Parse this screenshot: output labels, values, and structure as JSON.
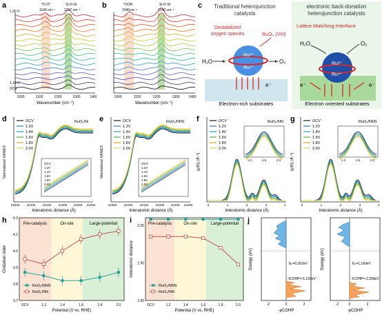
{
  "panel_labels": {
    "a": "a",
    "b": "b",
    "c": "c",
    "d": "d",
    "e": "e",
    "f": "f",
    "g": "g",
    "h": "h",
    "i": "i",
    "j": "j"
  },
  "panel_a": {
    "top_voltage": "1.30 V",
    "bottom_voltage": "1.10 V",
    "ocv": "OCV",
    "band1": "*O-O*",
    "band1_wn": "1100 cm⁻¹",
    "band2": "Si-O-Si",
    "band2_wn": "1237 cm⁻¹",
    "xlabel": "Wavenumber (cm⁻¹)",
    "xticks": [
      "1000",
      "1100",
      "1200",
      "1300",
      "1400"
    ]
  },
  "panel_b": {
    "band1": "*OOH",
    "band1_wn": "1040cm⁻¹",
    "band2": "Si-O-Si",
    "band2_wn": "1240 cm⁻¹",
    "xlabel": "Wavenumber (cm⁻¹)",
    "xticks": [
      "1000",
      "1100",
      "1200",
      "1300",
      "1400"
    ]
  },
  "panel_c": {
    "left_title_1": "Traditional heterojunction",
    "left_title_2": "catalysts",
    "right_title_1": "electronic back-donation",
    "right_title_2": "heterojunction catalysts",
    "destab_1": "Destabilized",
    "destab_2": "oxygen species",
    "ruo4": "RuO₄ (VIII)",
    "lattice": "Lattice Matching Interface",
    "ru_top": "Ru⁸⁺",
    "ru_bot": "Ru⁴⁺",
    "h2o": "H₂O",
    "o2": "O₂",
    "e": "e⁻",
    "left_sub": "Electron-rich substrates",
    "right_sub": "Electron oriented substrates"
  },
  "panel_d": {
    "tag": "RuO₂/Ni",
    "ylabel": "Normalized XANES",
    "xlabel": "Interatomic distance (Å)",
    "xticks": [
      "22050",
      "22100",
      "22150",
      "22200",
      "22250",
      "22300"
    ]
  },
  "panel_e": {
    "tag": "RuO₂/NNS",
    "ylabel": "Normalized XANES",
    "xlabel": "Interatomic distance (Å)",
    "xticks": [
      "22050",
      "22100",
      "22150",
      "22200",
      "22250",
      "22300"
    ]
  },
  "panel_f": {
    "tag": "RuO₂/NN",
    "ylabel": "|χ(R)| (Å⁻³)",
    "xlabel": "Interatomic distance (Å)",
    "xticks": [
      "0",
      "1",
      "2",
      "3",
      "4"
    ],
    "inset_ticks": [
      "1.0",
      "1.5",
      "2.0"
    ]
  },
  "panel_g": {
    "tag": "RuO₂/NNS",
    "ylabel": "|χ(R)| (Å⁻³)",
    "xlabel": "Interatomic distance (Å)",
    "xticks": [
      "0",
      "1",
      "2",
      "3",
      "4"
    ],
    "inset_ticks": [
      "1.0",
      "1.5",
      "2.0"
    ]
  },
  "legend_potentials": [
    "OCV",
    "1.2V",
    "1.4V",
    "1.6V",
    "1.8V",
    "2.0V"
  ],
  "potential_colors": [
    "#1a1a1a",
    "#2f6fd6",
    "#1aa3a3",
    "#48b44a",
    "#d7a31c",
    "#e0d24a"
  ],
  "panel_h": {
    "ylabel": "Oxidation state",
    "xlabel": "Potential (V vs. RHE)",
    "regions": [
      "Pre-catalysis",
      "On-site",
      "Large-potential"
    ],
    "xticks": [
      "OCV",
      "1.2",
      "1.4",
      "1.6",
      "1.8",
      "2.0"
    ],
    "yticks": [
      "3.7",
      "3.8",
      "3.9",
      "4.0",
      "4.1",
      "4.2"
    ],
    "legend": [
      "RuO₂/NNS",
      "RuO₂/NN"
    ]
  },
  "panel_i": {
    "ylabel": "Interatomic distance",
    "xlabel": "Potential (V vs. RHE)",
    "regions": [
      "Pre-catalysis",
      "On-site",
      "Large-potential"
    ],
    "xticks": [
      "OCV",
      "1.2",
      "1.4",
      "1.6",
      "1.8",
      "2.0"
    ],
    "yticks": [
      "1.90",
      "1.95",
      "2.00"
    ],
    "legend": [
      "RuO₂/NNS",
      "RuO₂/NN"
    ]
  },
  "panel_j": {
    "ylabel": "Energy (eV)",
    "xlabel": "-pCOHP",
    "left_i": "Eₙ=0.262eV",
    "left_icohp": "-ICOHP=-5.126eV",
    "right_i": "Eₙ=1.160eV",
    "right_icohp": "-ICOHP=-2.258eV",
    "xticks": [
      "-2",
      "0",
      "2"
    ],
    "yticks": [
      "4",
      "0",
      "-4",
      "-8"
    ]
  },
  "chart_data": [
    {
      "type": "line",
      "title": "h",
      "x": [
        "OCV",
        "1.2",
        "1.4",
        "1.6",
        "1.8",
        "2.0"
      ],
      "series": [
        {
          "name": "RuO₂/NNS",
          "values": [
            3.87,
            3.85,
            3.82,
            3.82,
            3.84,
            3.87
          ]
        },
        {
          "name": "RuO₂/NN",
          "values": [
            3.95,
            3.92,
            4.0,
            4.07,
            4.1,
            4.12
          ]
        }
      ],
      "ylim": [
        3.7,
        4.2
      ]
    },
    {
      "type": "line",
      "title": "i",
      "x": [
        "OCV",
        "1.2",
        "1.4",
        "1.6",
        "1.8",
        "2.0"
      ],
      "series": [
        {
          "name": "RuO₂/NNS",
          "values": [
            2.008,
            2.008,
            2.008,
            2.008,
            2.008,
            2.008
          ]
        },
        {
          "name": "RuO₂/NN",
          "values": [
            1.985,
            1.985,
            1.985,
            1.983,
            1.97,
            1.948
          ]
        }
      ],
      "ylim": [
        1.9,
        2.01
      ]
    }
  ]
}
